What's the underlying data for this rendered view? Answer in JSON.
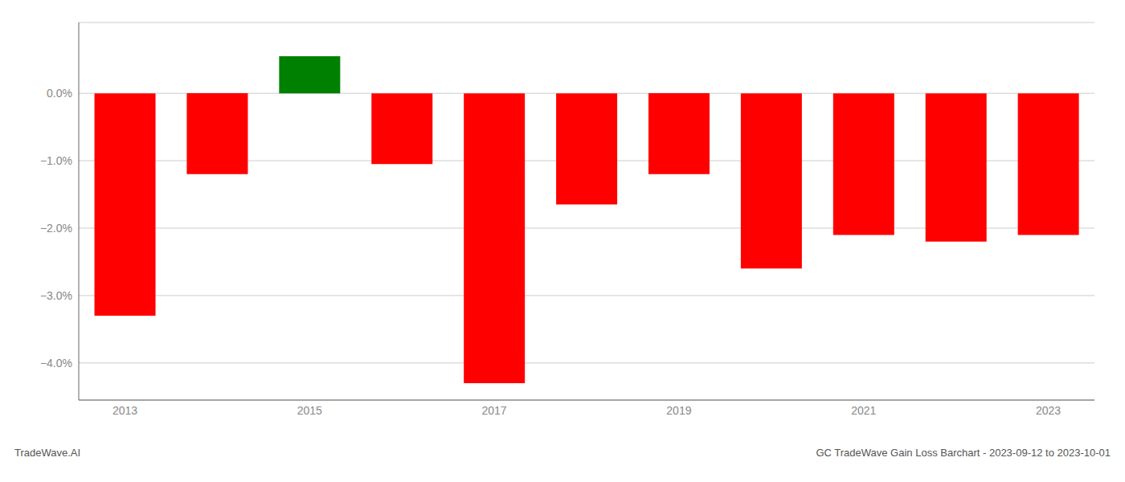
{
  "chart_data": {
    "type": "bar",
    "categories": [
      "2013",
      null,
      "2015",
      null,
      "2017",
      null,
      "2019",
      null,
      "2021",
      null,
      "2023"
    ],
    "values": [
      -3.3,
      -1.2,
      0.55,
      -1.05,
      -4.3,
      -1.65,
      -1.2,
      -2.6,
      -2.1,
      -2.2,
      -2.1
    ],
    "colors": [
      "#ff0000",
      "#ff0000",
      "#008000",
      "#ff0000",
      "#ff0000",
      "#ff0000",
      "#ff0000",
      "#ff0000",
      "#ff0000",
      "#ff0000",
      "#ff0000"
    ],
    "ylim": [
      -4.55,
      1.05
    ],
    "yticks": [
      {
        "value": 0.0,
        "label": "0.0%"
      },
      {
        "value": -1.0,
        "label": "−1.0%"
      },
      {
        "value": -2.0,
        "label": "−2.0%"
      },
      {
        "value": -3.0,
        "label": "−3.0%"
      },
      {
        "value": -4.0,
        "label": "−4.0%"
      }
    ],
    "grid": true,
    "annotations": [
      "TradeWave.AI",
      "GC TradeWave Gain Loss Barchart - 2023-09-12 to 2023-10-01"
    ]
  }
}
